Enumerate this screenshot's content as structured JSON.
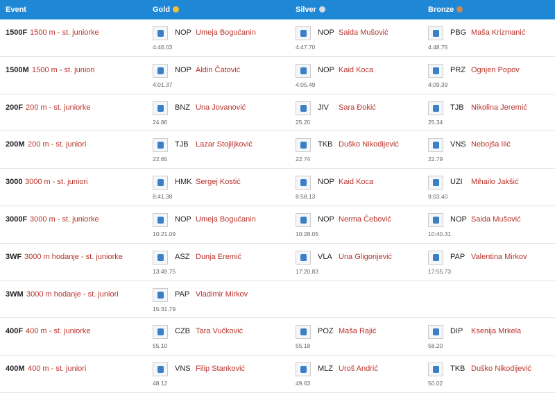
{
  "header": {
    "event": "Event",
    "gold": "Gold",
    "silver": "Silver",
    "bronze": "Bronze"
  },
  "rows": [
    {
      "code": "1500F",
      "event": "1500 m - st. juniorke",
      "gold": {
        "club": "NOP",
        "name": "Umeja Bogućanin",
        "time": "4:46.03"
      },
      "silver": {
        "club": "NOP",
        "name": "Saida Mušović",
        "time": "4:47.70"
      },
      "bronze": {
        "club": "PBG",
        "name": "Maša Krizmanić",
        "time": "4:48.75"
      }
    },
    {
      "code": "1500M",
      "event": "1500 m - st. juniori",
      "gold": {
        "club": "NOP",
        "name": "Aldin Čatović",
        "time": "4:01.37"
      },
      "silver": {
        "club": "NOP",
        "name": "Kaid Koca",
        "time": "4:05.49"
      },
      "bronze": {
        "club": "PRZ",
        "name": "Ognjen Popov",
        "time": "4:09.39"
      }
    },
    {
      "code": "200F",
      "event": "200 m - st. juniorke",
      "gold": {
        "club": "BNZ",
        "name": "Una Jovanović",
        "time": "24.86"
      },
      "silver": {
        "club": "JIV",
        "name": "Sara Đokić",
        "time": "25.20"
      },
      "bronze": {
        "club": "TJB",
        "name": "Nikolina Jeremić",
        "time": "25.34"
      }
    },
    {
      "code": "200M",
      "event": "200 m - st. juniori",
      "gold": {
        "club": "TJB",
        "name": "Lazar Stojiljković",
        "time": "22.65"
      },
      "silver": {
        "club": "TKB",
        "name": "Duško Nikodijević",
        "time": "22.74"
      },
      "bronze": {
        "club": "VNS",
        "name": "Nebojša Ilić",
        "time": "22.79"
      }
    },
    {
      "code": "3000",
      "event": "3000 m - st. juniori",
      "gold": {
        "club": "HMK",
        "name": "Sergej Kostić",
        "time": "8:41.38"
      },
      "silver": {
        "club": "NOP",
        "name": "Kaid Koca",
        "time": "8:58.13"
      },
      "bronze": {
        "club": "UZI",
        "name": "Mihailo Jakšić",
        "time": "9:03.40"
      }
    },
    {
      "code": "3000F",
      "event": "3000 m - st. juniorke",
      "gold": {
        "club": "NOP",
        "name": "Umeja Bogućanin",
        "time": "10:21.09"
      },
      "silver": {
        "club": "NOP",
        "name": "Nerma Čebović",
        "time": "10:28.05"
      },
      "bronze": {
        "club": "NOP",
        "name": "Saida Mušović",
        "time": "10:40.31"
      }
    },
    {
      "code": "3WF",
      "event": "3000 m hodanje - st. juniorke",
      "gold": {
        "club": "ASZ",
        "name": "Dunja Eremić",
        "time": "13:49.75"
      },
      "silver": {
        "club": "VLA",
        "name": "Una Gligorijević",
        "time": "17:20.83"
      },
      "bronze": {
        "club": "PAP",
        "name": "Valentina Mirkov",
        "time": "17:55.73"
      }
    },
    {
      "code": "3WM",
      "event": "3000 m hodanje - st. juniori",
      "gold": {
        "club": "PAP",
        "name": "Vladimir Mirkov",
        "time": "15:31.79"
      }
    },
    {
      "code": "400F",
      "event": "400 m - st. juniorke",
      "gold": {
        "club": "CZB",
        "name": "Tara Vučković",
        "time": "55.10"
      },
      "silver": {
        "club": "POZ",
        "name": "Maša Rajić",
        "time": "55.18"
      },
      "bronze": {
        "club": "DIP",
        "name": "Ksenija Mrkela",
        "time": "58.20"
      }
    },
    {
      "code": "400M",
      "event": "400 m - st. juniori",
      "gold": {
        "club": "VNS",
        "name": "Filip Stanković",
        "time": "48.12"
      },
      "silver": {
        "club": "MLZ",
        "name": "Uroš Andrić",
        "time": "49.63"
      },
      "bronze": {
        "club": "TKB",
        "name": "Duško Nikodijević",
        "time": "50.02"
      }
    }
  ]
}
